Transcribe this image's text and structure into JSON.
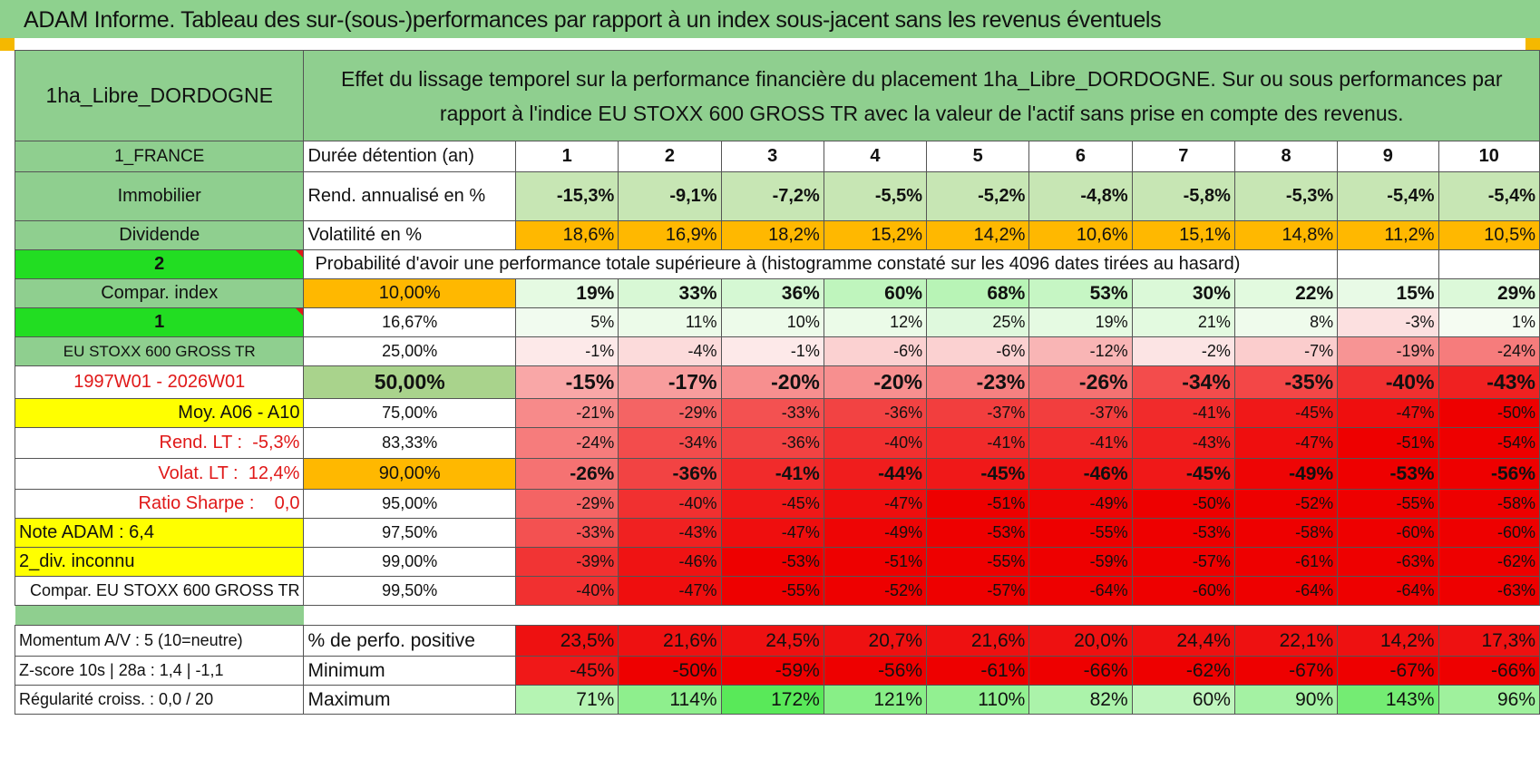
{
  "banner": {
    "title": "ADAM Informe. Tableau des sur-(sous-)performances par rapport à un index sous-jacent sans les revenus éventuels"
  },
  "header": {
    "asset": "1ha_Libre_DORDOGNE",
    "description": "Effet du lissage temporel sur la performance financière du placement 1ha_Libre_DORDOGNE. Sur ou sous performances par rapport à l'indice EU STOXX 600 GROSS TR avec la valeur de l'actif sans prise en compte des revenus."
  },
  "durations": {
    "label": "Durée détention (an)",
    "values": [
      "1",
      "2",
      "3",
      "4",
      "5",
      "6",
      "7",
      "8",
      "9",
      "10"
    ]
  },
  "rendement": {
    "label": "Rend. annualisé en %",
    "values": [
      "-15,3%",
      "-9,1%",
      "-7,2%",
      "-5,5%",
      "-5,2%",
      "-4,8%",
      "-5,8%",
      "-5,3%",
      "-5,4%",
      "-5,4%"
    ]
  },
  "volatilite": {
    "label": "Volatilité en %",
    "values": [
      "18,6%",
      "16,9%",
      "18,2%",
      "15,2%",
      "14,2%",
      "10,6%",
      "15,1%",
      "14,8%",
      "11,2%",
      "10,5%"
    ]
  },
  "probability_title": "Probabilité d'avoir une performance totale supérieure à (histogramme constaté sur les 4096 dates tirées au hasard)",
  "side": {
    "country": "1_FRANCE",
    "type": "Immobilier",
    "dividend": "Dividende",
    "code2": "2",
    "compar_index": "Compar. index",
    "code1": "1",
    "index_name": "EU STOXX 600 GROSS TR",
    "period": "1997W01 - 2026W01",
    "moy": "Moy. A06 - A10",
    "rend_lt_label": "Rend. LT :",
    "rend_lt_value": "-5,3%",
    "volat_lt_label": "Volat. LT :",
    "volat_lt_value": "12,4%",
    "sharpe_label": "Ratio Sharpe :",
    "sharpe_value": "0,0",
    "note": "Note ADAM : 6,4",
    "div": "2_div. inconnu",
    "compar": "Compar. EU STOXX 600 GROSS TR"
  },
  "quantiles": [
    {
      "q": "10,00%",
      "values": [
        "19%",
        "33%",
        "36%",
        "60%",
        "68%",
        "53%",
        "30%",
        "22%",
        "15%",
        "29%"
      ]
    },
    {
      "q": "16,67%",
      "values": [
        "5%",
        "11%",
        "10%",
        "12%",
        "25%",
        "19%",
        "21%",
        "8%",
        "-3%",
        "1%"
      ]
    },
    {
      "q": "25,00%",
      "values": [
        "-1%",
        "-4%",
        "-1%",
        "-6%",
        "-6%",
        "-12%",
        "-2%",
        "-7%",
        "-19%",
        "-24%"
      ]
    },
    {
      "q": "50,00%",
      "values": [
        "-15%",
        "-17%",
        "-20%",
        "-20%",
        "-23%",
        "-26%",
        "-34%",
        "-35%",
        "-40%",
        "-43%"
      ]
    },
    {
      "q": "75,00%",
      "values": [
        "-21%",
        "-29%",
        "-33%",
        "-36%",
        "-37%",
        "-37%",
        "-41%",
        "-45%",
        "-47%",
        "-50%"
      ]
    },
    {
      "q": "83,33%",
      "values": [
        "-24%",
        "-34%",
        "-36%",
        "-40%",
        "-41%",
        "-41%",
        "-43%",
        "-47%",
        "-51%",
        "-54%"
      ]
    },
    {
      "q": "90,00%",
      "values": [
        "-26%",
        "-36%",
        "-41%",
        "-44%",
        "-45%",
        "-46%",
        "-45%",
        "-49%",
        "-53%",
        "-56%"
      ]
    },
    {
      "q": "95,00%",
      "values": [
        "-29%",
        "-40%",
        "-45%",
        "-47%",
        "-51%",
        "-49%",
        "-50%",
        "-52%",
        "-55%",
        "-58%"
      ]
    },
    {
      "q": "97,50%",
      "values": [
        "-33%",
        "-43%",
        "-47%",
        "-49%",
        "-53%",
        "-55%",
        "-53%",
        "-58%",
        "-60%",
        "-60%"
      ]
    },
    {
      "q": "99,00%",
      "values": [
        "-39%",
        "-46%",
        "-53%",
        "-51%",
        "-55%",
        "-59%",
        "-57%",
        "-61%",
        "-63%",
        "-62%"
      ]
    },
    {
      "q": "99,50%",
      "values": [
        "-40%",
        "-47%",
        "-55%",
        "-52%",
        "-57%",
        "-64%",
        "-60%",
        "-64%",
        "-64%",
        "-63%"
      ]
    }
  ],
  "bottom": {
    "momentum": "Momentum A/V : 5 (10=neutre)",
    "zscore": "Z-score 10s | 28a : 1,4 | -1,1",
    "regularite": "Régularité croiss. : 0,0 / 20",
    "positive": {
      "label": "% de perfo. positive",
      "values": [
        "23,5%",
        "21,6%",
        "24,5%",
        "20,7%",
        "21,6%",
        "20,0%",
        "24,4%",
        "22,1%",
        "14,2%",
        "17,3%"
      ]
    },
    "minimum": {
      "label": "Minimum",
      "values": [
        "-45%",
        "-50%",
        "-59%",
        "-56%",
        "-61%",
        "-66%",
        "-62%",
        "-67%",
        "-67%",
        "-66%"
      ]
    },
    "maximum": {
      "label": "Maximum",
      "values": [
        "71%",
        "114%",
        "172%",
        "121%",
        "110%",
        "82%",
        "60%",
        "90%",
        "143%",
        "96%"
      ]
    }
  },
  "colors": {
    "label_green": "#8fcf8f",
    "bright_green": "#22dd22",
    "orange": "#ffb800",
    "yellow": "#ffff00",
    "red_text": "#e01818",
    "positive_red": "#ee1111"
  }
}
